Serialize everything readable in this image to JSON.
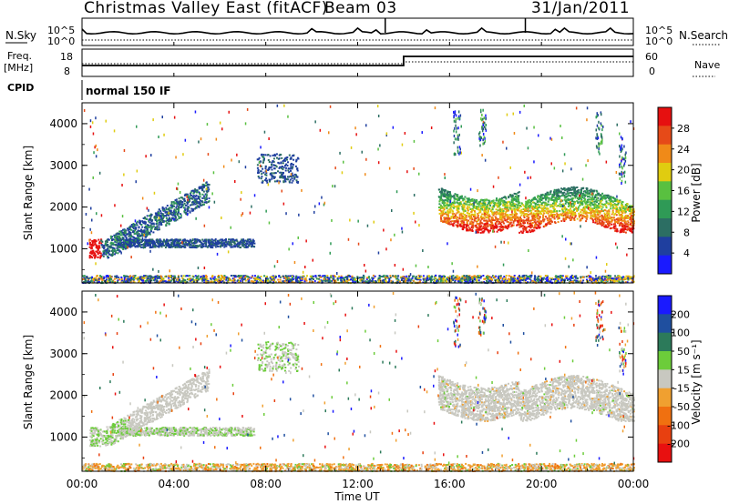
{
  "header": {
    "station": "Christmas Valley East (fitACF)",
    "beam": "Beam 03",
    "date": "31/Jan/2011"
  },
  "summary_panel": {
    "nsky_label": "N.Sky",
    "nsearch_label": "N.Search",
    "count_ticks": [
      "10^5",
      "10^0"
    ],
    "freq_label_top": "Freq.",
    "freq_label_bottom": "[MHz]",
    "freq_ticks": [
      "18",
      "8"
    ],
    "nave_label": "Nave",
    "nave_ticks": [
      "60",
      "0"
    ],
    "cpid_label": "CPID",
    "cpid_value": "normal 150 IF"
  },
  "colors": {
    "power_scale": [
      "#1a1aff",
      "#1f3f9f",
      "#2c6e63",
      "#2f9a56",
      "#59c040",
      "#e0cc10",
      "#f08a18",
      "#e64a18",
      "#e61010"
    ],
    "velocity_scale": [
      "#1a1aff",
      "#1f4f9f",
      "#2c7a5a",
      "#6ccc3a",
      "#c8c8c0",
      "#f0a030",
      "#f07010",
      "#e84010",
      "#e81010"
    ]
  },
  "chart_data": [
    {
      "type": "heatmap",
      "title": "Power",
      "ylabel": "Slant Range [km]",
      "xlabel": "Time UT",
      "xticks": [
        "00:00",
        "04:00",
        "08:00",
        "12:00",
        "16:00",
        "20:00",
        "00:00"
      ],
      "x_range_hours": [
        0,
        24
      ],
      "yticks": [
        "1000",
        "2000",
        "3000",
        "4000"
      ],
      "y_range_km": [
        180,
        4500
      ],
      "colorbar": {
        "label": "Power [dB]",
        "ticks": [
          "4",
          "8",
          "12",
          "16",
          "20",
          "24",
          "28"
        ],
        "range": [
          0,
          30
        ]
      },
      "regions": [
        {
          "name": "near-range band",
          "t": [
            0,
            24
          ],
          "range_km": [
            200,
            400
          ],
          "level": 8
        },
        {
          "name": "morning arc",
          "t": [
            0,
            7.5
          ],
          "range_km": [
            1000,
            2600
          ],
          "level": 10
        },
        {
          "name": "dusk band",
          "t": [
            15.5,
            24
          ],
          "range_km": [
            1500,
            2400
          ],
          "level": 20
        }
      ]
    },
    {
      "type": "heatmap",
      "title": "Velocity",
      "ylabel": "Slant Range [km]",
      "xlabel": "Time UT",
      "xticks": [
        "00:00",
        "04:00",
        "08:00",
        "12:00",
        "16:00",
        "20:00",
        "00:00"
      ],
      "x_range_hours": [
        0,
        24
      ],
      "yticks": [
        "1000",
        "2000",
        "3000",
        "4000"
      ],
      "y_range_km": [
        180,
        4500
      ],
      "colorbar": {
        "label": "Velocity [m s-1]",
        "ticks": [
          "200",
          "100",
          "50",
          "15",
          "-15",
          "-50",
          "-100",
          "-200"
        ],
        "range": [
          -250,
          250
        ]
      }
    }
  ],
  "axes": {
    "time_label": "Time UT",
    "y_label": "Slant Range [km]",
    "power_cbar_label": "Power [dB]",
    "velocity_cbar_label": "Velocity [m s⁻¹]"
  }
}
